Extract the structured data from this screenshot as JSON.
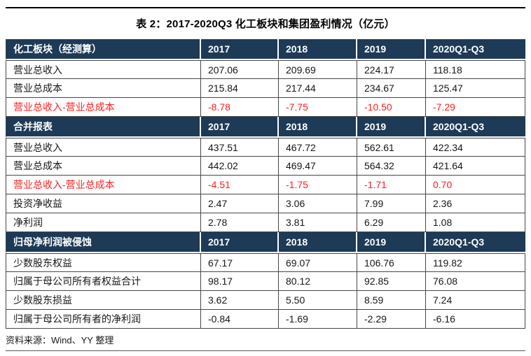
{
  "page": {
    "title": "表 2：2017-2020Q3 化工板块和集团盈利情况（亿元）",
    "source_note": "资料来源：Wind、YY 整理"
  },
  "colors": {
    "header_bg": "#1d3a57",
    "header_text": "#ffffff",
    "negative_red": "#fb2020",
    "grid_line": "#474747",
    "top_rule": "#000000"
  },
  "table": {
    "sections": [
      {
        "title": "化工板块（经测算）",
        "columns": [
          "2017",
          "2018",
          "2019",
          "2020Q1-Q3"
        ],
        "rows": [
          {
            "label": "营业总收入",
            "values": [
              "207.06",
              "209.69",
              "224.17",
              "118.18"
            ],
            "red": false
          },
          {
            "label": "营业总成本",
            "values": [
              "215.84",
              "217.44",
              "234.67",
              "125.47"
            ],
            "red": false
          },
          {
            "label": "营业总收入-营业总成本",
            "values": [
              "-8.78",
              "-7.75",
              "-10.50",
              "-7.29"
            ],
            "red": true
          }
        ]
      },
      {
        "title": "合并报表",
        "columns": [
          "2017",
          "2018",
          "2019",
          "2020Q1-Q3"
        ],
        "rows": [
          {
            "label": "营业总收入",
            "values": [
              "437.51",
              "467.72",
              "562.61",
              "422.34"
            ],
            "red": false
          },
          {
            "label": "营业总成本",
            "values": [
              "442.02",
              "469.47",
              "564.32",
              "421.64"
            ],
            "red": false
          },
          {
            "label": "营业总收入-营业总成本",
            "values": [
              "-4.51",
              "-1.75",
              "-1.71",
              "0.70"
            ],
            "red": true
          },
          {
            "label": "投资净收益",
            "values": [
              "2.47",
              "3.06",
              "7.99",
              "2.36"
            ],
            "red": false
          },
          {
            "label": "净利润",
            "values": [
              "2.78",
              "3.81",
              "6.29",
              "1.08"
            ],
            "red": false
          }
        ]
      },
      {
        "title": "归母净利润被侵蚀",
        "columns": [
          "2017",
          "2018",
          "2019",
          "2020Q1-Q3"
        ],
        "rows": [
          {
            "label": "少数股东权益",
            "values": [
              "67.17",
              "69.07",
              "106.76",
              "119.82"
            ],
            "red": false
          },
          {
            "label": "归属于母公司所有者权益合计",
            "values": [
              "98.17",
              "80.12",
              "92.85",
              "76.08"
            ],
            "red": false
          },
          {
            "label": "少数股东损益",
            "values": [
              "3.62",
              "5.50",
              "8.59",
              "7.24"
            ],
            "red": false
          },
          {
            "label": "归属于母公司所有者的净利润",
            "values": [
              "-0.84",
              "-1.69",
              "-2.29",
              "-6.16"
            ],
            "red": false
          }
        ]
      }
    ]
  }
}
